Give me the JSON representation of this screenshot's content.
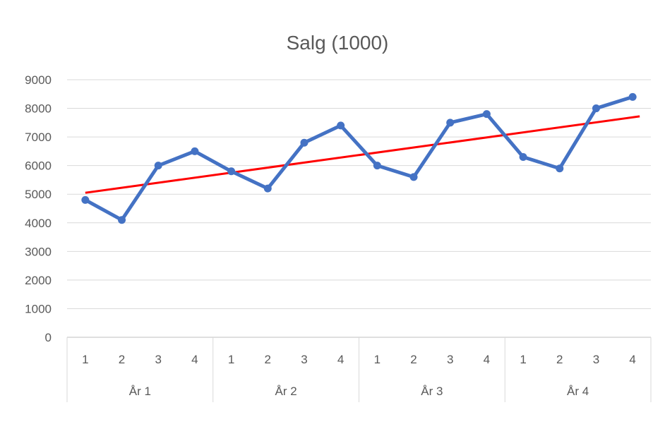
{
  "chart_data": {
    "type": "line",
    "title": "Salg (1000)",
    "xlabel": "",
    "ylabel": "",
    "ylim": [
      0,
      9000
    ],
    "yticks": [
      0,
      1000,
      2000,
      3000,
      4000,
      5000,
      6000,
      7000,
      8000,
      9000
    ],
    "grid": true,
    "legend": "none",
    "categories": [
      "1",
      "2",
      "3",
      "4",
      "1",
      "2",
      "3",
      "4",
      "1",
      "2",
      "3",
      "4",
      "1",
      "2",
      "3",
      "4"
    ],
    "groups": [
      {
        "label": "År 1",
        "span": 4
      },
      {
        "label": "År 2",
        "span": 4
      },
      {
        "label": "År 3",
        "span": 4
      },
      {
        "label": "År 4",
        "span": 4
      }
    ],
    "series": [
      {
        "color": "#4472C4",
        "marker": "circle",
        "values": [
          4800,
          4100,
          6000,
          6500,
          5800,
          5200,
          6800,
          7400,
          6000,
          5600,
          7500,
          7800,
          6300,
          5900,
          8000,
          8400
        ]
      }
    ],
    "trendline": {
      "type": "linear",
      "color": "#FF0000",
      "start": 5050,
      "end": 7720
    }
  }
}
